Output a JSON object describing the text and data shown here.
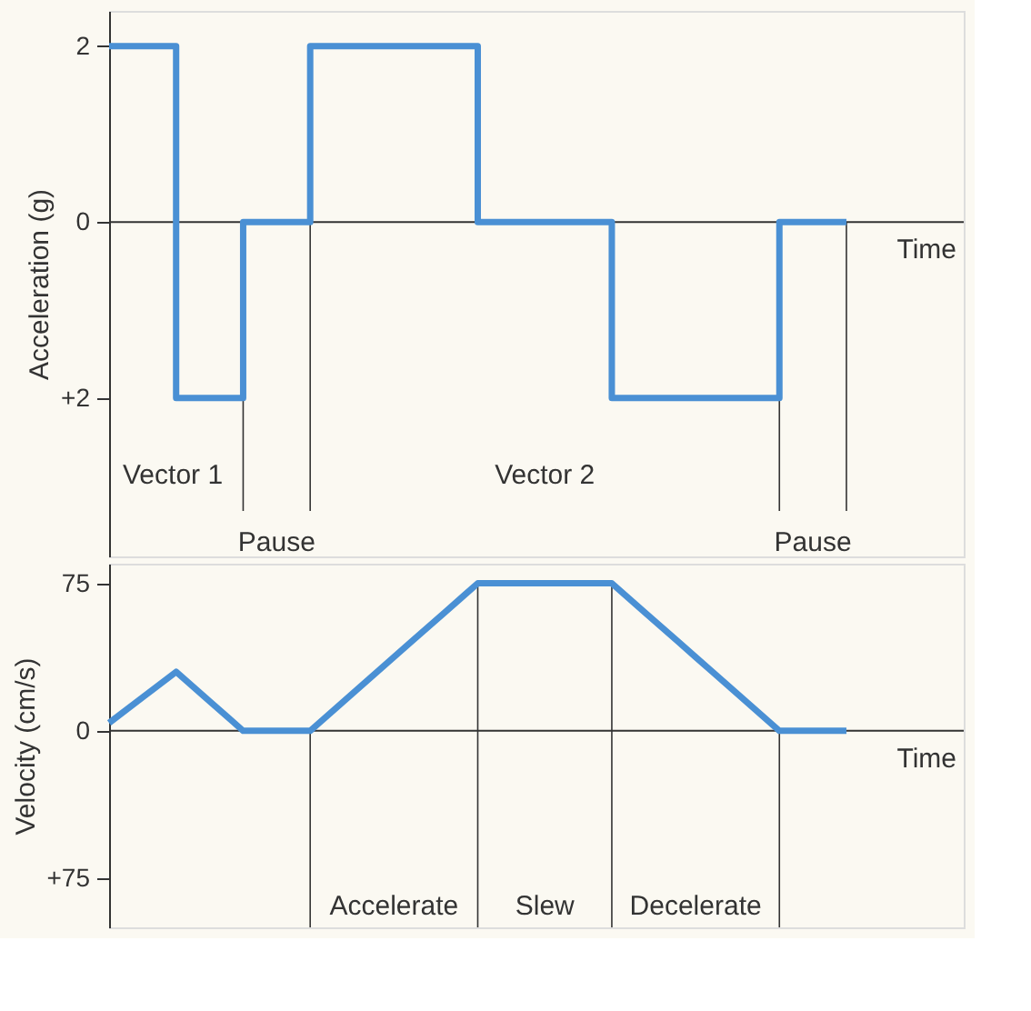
{
  "chart_data": [
    {
      "type": "step",
      "ylabel": "Acceleration (g)",
      "xlabel": "Time",
      "ylim": [
        -3.8,
        2.4
      ],
      "yticks": [
        {
          "value": -2,
          "label": "+2"
        },
        0,
        2
      ],
      "tick_labels": "y",
      "categories": [
        null,
        null,
        null,
        null,
        null,
        null,
        null,
        null,
        null,
        null,
        null,
        null,
        null,
        null,
        null,
        null,
        null,
        null,
        null,
        null,
        null,
        null,
        null
      ],
      "series": [
        {
          "color": "#4a90d4",
          "values": [
            2,
            2,
            -2,
            -2,
            0,
            0,
            2,
            2,
            2,
            2,
            2,
            0,
            0,
            0,
            0,
            -2,
            -2,
            -2,
            -2,
            -2,
            0,
            0,
            0
          ]
        }
      ],
      "annotations": [
        "Vector 1",
        "Vector 2",
        "Pause",
        "Pause"
      ]
    },
    {
      "type": "line",
      "ylabel": "Velocity (cm/s)",
      "xlabel": "Time",
      "ylim": [
        -100,
        85
      ],
      "yticks": [
        {
          "value": -75,
          "label": "+75"
        },
        0,
        75
      ],
      "tick_labels": "y",
      "categories": [
        null,
        null,
        null,
        null,
        null,
        null,
        null,
        null,
        null,
        null,
        null,
        null,
        null,
        null,
        null,
        null,
        null,
        null,
        null,
        null,
        null,
        null,
        null
      ],
      "series": [
        {
          "color": "#4a90d4",
          "values": [
            4,
            17,
            30,
            15,
            0,
            0,
            0,
            15,
            30,
            45,
            60,
            75,
            75,
            75,
            75,
            75,
            60,
            45,
            30,
            15,
            0,
            0,
            0
          ]
        }
      ],
      "annotations": [
        "Accelerate",
        "Slew",
        "Decelerate"
      ]
    }
  ]
}
